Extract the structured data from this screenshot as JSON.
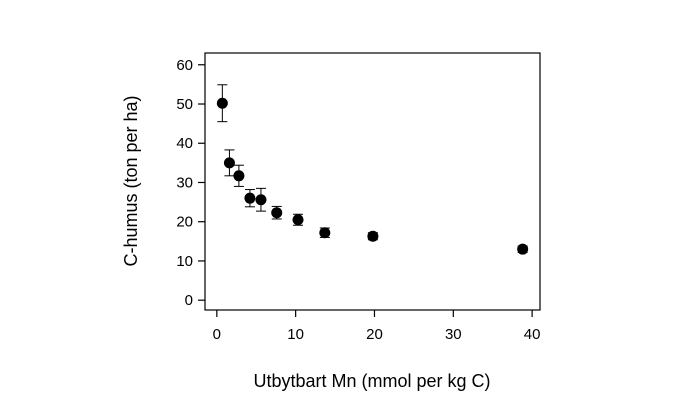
{
  "chart_data": {
    "type": "scatter",
    "xlabel": "Utbytbart Mn (mmol per kg C)",
    "ylabel": "C-humus (ton per ha)",
    "xlim": [
      -1.5,
      41
    ],
    "ylim": [
      -2.5,
      63
    ],
    "xticks": [
      0,
      10,
      20,
      30,
      40
    ],
    "yticks": [
      0,
      10,
      20,
      30,
      40,
      50,
      60
    ],
    "grid": false,
    "legend": "none",
    "marker_color": "#000000",
    "points": [
      {
        "x": 0.7,
        "y": 50.2,
        "err": 4.7
      },
      {
        "x": 1.6,
        "y": 35.0,
        "err": 3.3
      },
      {
        "x": 2.8,
        "y": 31.7,
        "err": 2.7
      },
      {
        "x": 4.2,
        "y": 26.0,
        "err": 2.2
      },
      {
        "x": 5.6,
        "y": 25.6,
        "err": 2.9
      },
      {
        "x": 7.6,
        "y": 22.3,
        "err": 1.6
      },
      {
        "x": 10.3,
        "y": 20.5,
        "err": 1.4
      },
      {
        "x": 13.7,
        "y": 17.2,
        "err": 1.2
      },
      {
        "x": 19.8,
        "y": 16.3,
        "err": 0.9
      },
      {
        "x": 38.8,
        "y": 13.0,
        "err": 0.8
      }
    ]
  }
}
